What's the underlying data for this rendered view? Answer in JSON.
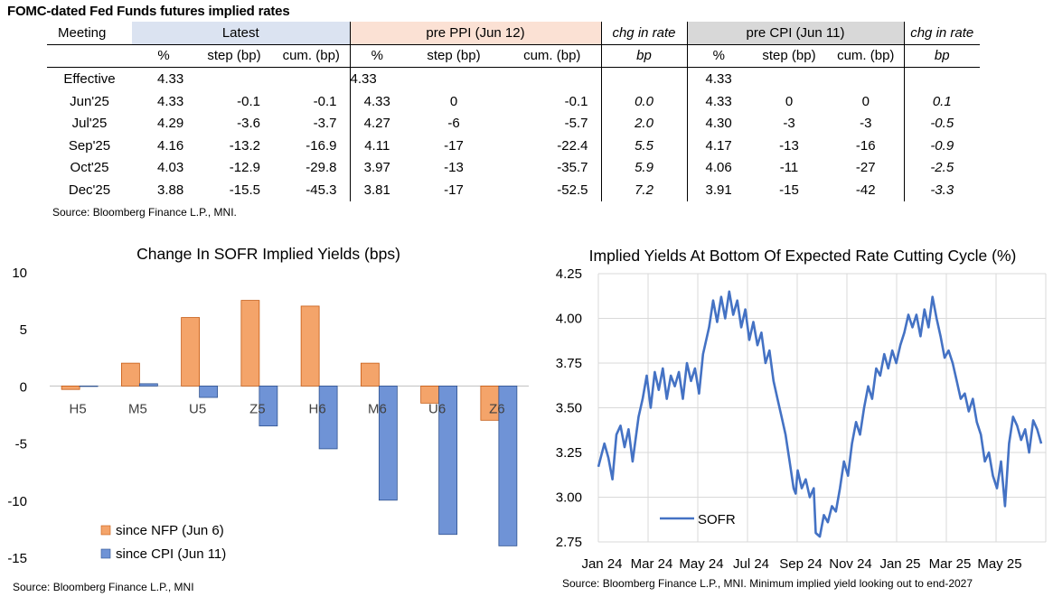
{
  "table": {
    "title": "FOMC-dated Fed Funds futures implied rates",
    "col_meeting": "Meeting",
    "group_latest": "Latest",
    "group_ppi": "pre PPI (Jun 12)",
    "group_chg": "chg in rate",
    "group_cpi": "pre CPI (Jun 11)",
    "sub_pct": "%",
    "sub_step": "step (bp)",
    "sub_cum": "cum. (bp)",
    "sub_bp": "bp",
    "rows": [
      {
        "meeting": "Effective",
        "l_pct": "4.33",
        "l_step": "",
        "l_cum": "",
        "p_pct": "4.33",
        "p_step": "",
        "p_cum": "",
        "chg1": "",
        "c_pct": "4.33",
        "c_step": "",
        "c_cum": "",
        "chg2": ""
      },
      {
        "meeting": "Jun'25",
        "l_pct": "4.33",
        "l_step": "-0.1",
        "l_cum": "-0.1",
        "p_pct": "4.33",
        "p_step": "0",
        "p_cum": "-0.1",
        "chg1": "0.0",
        "c_pct": "4.33",
        "c_step": "0",
        "c_cum": "0",
        "chg2": "0.1"
      },
      {
        "meeting": "Jul'25",
        "l_pct": "4.29",
        "l_step": "-3.6",
        "l_cum": "-3.7",
        "p_pct": "4.27",
        "p_step": "-6",
        "p_cum": "-5.7",
        "chg1": "2.0",
        "c_pct": "4.30",
        "c_step": "-3",
        "c_cum": "-3",
        "chg2": "-0.5"
      },
      {
        "meeting": "Sep'25",
        "l_pct": "4.16",
        "l_step": "-13.2",
        "l_cum": "-16.9",
        "p_pct": "4.11",
        "p_step": "-17",
        "p_cum": "-22.4",
        "chg1": "5.5",
        "c_pct": "4.17",
        "c_step": "-13",
        "c_cum": "-16",
        "chg2": "-0.9"
      },
      {
        "meeting": "Oct'25",
        "l_pct": "4.03",
        "l_step": "-12.9",
        "l_cum": "-29.8",
        "p_pct": "3.97",
        "p_step": "-13",
        "p_cum": "-35.7",
        "chg1": "5.9",
        "c_pct": "4.06",
        "c_step": "-11",
        "c_cum": "-27",
        "chg2": "-2.5"
      },
      {
        "meeting": "Dec'25",
        "l_pct": "3.88",
        "l_step": "-15.5",
        "l_cum": "-45.3",
        "p_pct": "3.81",
        "p_step": "-17",
        "p_cum": "-52.5",
        "chg1": "7.2",
        "c_pct": "3.91",
        "c_step": "-15",
        "c_cum": "-42",
        "chg2": "-3.3"
      }
    ],
    "source": "Source: Bloomberg Finance L.P., MNI."
  },
  "chart_data": [
    {
      "type": "bar",
      "title": "Change In SOFR Implied Yields (bps)",
      "categories": [
        "H5",
        "M5",
        "U5",
        "Z5",
        "H6",
        "M6",
        "U6",
        "Z6"
      ],
      "series": [
        {
          "name": "since NFP (Jun 6)",
          "color": "#f4a46a",
          "values": [
            -0.3,
            2.0,
            6.0,
            7.5,
            7.0,
            2.0,
            -1.5,
            -3.0
          ]
        },
        {
          "name": "since CPI (Jun 11)",
          "color": "#6f93d6",
          "values": [
            0.0,
            0.2,
            -1.0,
            -3.5,
            -5.5,
            -10.0,
            -13.0,
            -14.0
          ]
        }
      ],
      "ylim": [
        -15,
        10
      ],
      "yticks": [
        10,
        5,
        0,
        -5,
        -10,
        -15
      ],
      "source": "Source: Bloomberg Finance L.P., MNI"
    },
    {
      "type": "line",
      "title": "Implied Yields At Bottom Of Expected Rate Cutting Cycle (%)",
      "xlabels": [
        "Jan 24",
        "Mar 24",
        "May 24",
        "Jul 24",
        "Sep 24",
        "Nov 24",
        "Jan 25",
        "Mar 25",
        "May 25"
      ],
      "ylim": [
        2.75,
        4.25
      ],
      "yticks": [
        "4.25",
        "4.00",
        "3.75",
        "3.50",
        "3.25",
        "3.00",
        "2.75"
      ],
      "series": [
        {
          "name": "SOFR",
          "color": "#4472c4",
          "points": [
            [
              0.0,
              3.17
            ],
            [
              0.3,
              3.3
            ],
            [
              0.5,
              3.22
            ],
            [
              0.7,
              3.1
            ],
            [
              0.9,
              3.35
            ],
            [
              1.1,
              3.4
            ],
            [
              1.3,
              3.28
            ],
            [
              1.5,
              3.38
            ],
            [
              1.7,
              3.2
            ],
            [
              2.0,
              3.45
            ],
            [
              2.2,
              3.55
            ],
            [
              2.4,
              3.68
            ],
            [
              2.6,
              3.5
            ],
            [
              2.8,
              3.7
            ],
            [
              3.0,
              3.6
            ],
            [
              3.2,
              3.72
            ],
            [
              3.4,
              3.55
            ],
            [
              3.6,
              3.68
            ],
            [
              3.8,
              3.62
            ],
            [
              4.0,
              3.7
            ],
            [
              4.2,
              3.55
            ],
            [
              4.4,
              3.75
            ],
            [
              4.6,
              3.65
            ],
            [
              4.8,
              3.72
            ],
            [
              5.0,
              3.58
            ],
            [
              5.2,
              3.8
            ],
            [
              5.5,
              3.95
            ],
            [
              5.7,
              4.1
            ],
            [
              5.9,
              3.98
            ],
            [
              6.1,
              4.12
            ],
            [
              6.3,
              4.0
            ],
            [
              6.5,
              4.15
            ],
            [
              6.7,
              4.02
            ],
            [
              6.9,
              4.1
            ],
            [
              7.1,
              3.95
            ],
            [
              7.3,
              4.05
            ],
            [
              7.5,
              3.88
            ],
            [
              7.7,
              3.98
            ],
            [
              7.9,
              3.85
            ],
            [
              8.1,
              3.92
            ],
            [
              8.3,
              3.75
            ],
            [
              8.5,
              3.82
            ],
            [
              8.7,
              3.65
            ],
            [
              8.9,
              3.55
            ],
            [
              9.1,
              3.45
            ],
            [
              9.3,
              3.35
            ],
            [
              9.5,
              3.2
            ],
            [
              9.7,
              3.05
            ],
            [
              9.8,
              3.02
            ],
            [
              9.9,
              3.15
            ],
            [
              10.1,
              3.05
            ],
            [
              10.3,
              3.1
            ],
            [
              10.5,
              3.0
            ],
            [
              10.7,
              3.05
            ],
            [
              10.8,
              2.8
            ],
            [
              11.0,
              2.78
            ],
            [
              11.2,
              2.9
            ],
            [
              11.4,
              2.86
            ],
            [
              11.6,
              2.95
            ],
            [
              11.8,
              2.92
            ],
            [
              12.0,
              3.05
            ],
            [
              12.2,
              3.2
            ],
            [
              12.4,
              3.12
            ],
            [
              12.6,
              3.3
            ],
            [
              12.8,
              3.42
            ],
            [
              13.0,
              3.35
            ],
            [
              13.2,
              3.5
            ],
            [
              13.4,
              3.62
            ],
            [
              13.6,
              3.55
            ],
            [
              13.8,
              3.72
            ],
            [
              14.0,
              3.68
            ],
            [
              14.2,
              3.8
            ],
            [
              14.4,
              3.72
            ],
            [
              14.6,
              3.82
            ],
            [
              14.8,
              3.75
            ],
            [
              15.0,
              3.85
            ],
            [
              15.2,
              3.92
            ],
            [
              15.4,
              4.02
            ],
            [
              15.6,
              3.95
            ],
            [
              15.8,
              4.02
            ],
            [
              16.0,
              3.9
            ],
            [
              16.2,
              4.05
            ],
            [
              16.4,
              3.95
            ],
            [
              16.6,
              4.12
            ],
            [
              16.8,
              4.0
            ],
            [
              17.0,
              3.9
            ],
            [
              17.2,
              3.78
            ],
            [
              17.4,
              3.82
            ],
            [
              17.6,
              3.75
            ],
            [
              17.8,
              3.65
            ],
            [
              18.0,
              3.55
            ],
            [
              18.2,
              3.58
            ],
            [
              18.4,
              3.48
            ],
            [
              18.6,
              3.55
            ],
            [
              18.8,
              3.42
            ],
            [
              19.0,
              3.35
            ],
            [
              19.2,
              3.2
            ],
            [
              19.4,
              3.25
            ],
            [
              19.6,
              3.12
            ],
            [
              19.8,
              3.05
            ],
            [
              20.0,
              3.2
            ],
            [
              20.2,
              2.95
            ],
            [
              20.4,
              3.3
            ],
            [
              20.6,
              3.45
            ],
            [
              20.8,
              3.4
            ],
            [
              21.0,
              3.32
            ],
            [
              21.2,
              3.38
            ],
            [
              21.4,
              3.25
            ],
            [
              21.6,
              3.43
            ],
            [
              21.8,
              3.38
            ],
            [
              22.0,
              3.3
            ]
          ]
        }
      ],
      "source": "Source: Bloomberg Finance L.P., MNI. Minimum implied yield looking out to end-2027"
    }
  ]
}
